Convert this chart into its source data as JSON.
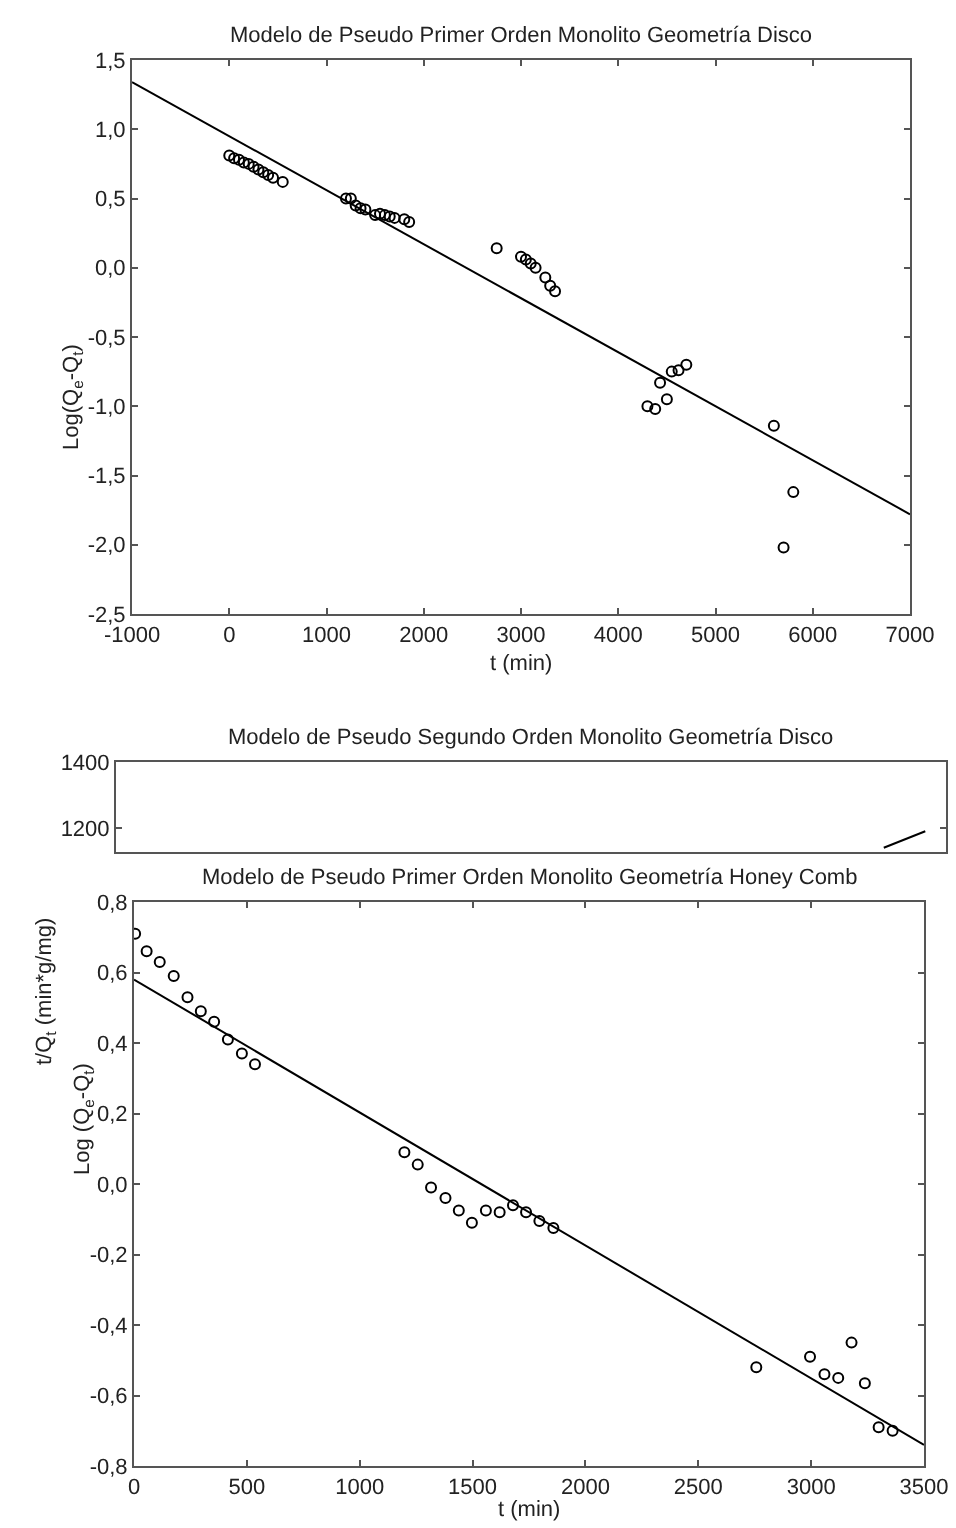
{
  "chart_data": [
    {
      "type": "scatter",
      "title": "Modelo de Pseudo Primer Orden Monolito Geometría Disco",
      "xlabel": "t (min)",
      "ylabel": "Log(Q$_{e}$-Q$_{t}$)",
      "xlim": [
        -1000,
        7000
      ],
      "ylim": [
        -2.5,
        1.5
      ],
      "xticks": [
        -1000,
        0,
        1000,
        2000,
        3000,
        4000,
        5000,
        6000,
        7000
      ],
      "yticks": [
        {
          "value": -2.5,
          "label": "-2,5"
        },
        {
          "value": -2,
          "label": "-2,0"
        },
        {
          "value": -1.5,
          "label": "-1,5"
        },
        {
          "value": -1,
          "label": "-1,0"
        },
        {
          "value": -0.5,
          "label": "-0,5"
        },
        {
          "value": 0,
          "label": "0,0"
        },
        {
          "value": 0.5,
          "label": "0,5"
        },
        {
          "value": 1,
          "label": "1,0"
        },
        {
          "value": 1.5,
          "label": "1,5"
        }
      ],
      "series": [
        {
          "marker": "circle",
          "color": "#000000",
          "x": [
            0,
            50,
            100,
            150,
            200,
            250,
            300,
            350,
            400,
            450,
            550,
            1200,
            1250,
            1300,
            1350,
            1400,
            1500,
            1550,
            1600,
            1650,
            1700,
            1800,
            1850,
            2750,
            3000,
            3050,
            3100,
            3150,
            3250,
            3300,
            3350,
            4300,
            4380,
            4430,
            4500,
            4550,
            4620,
            4700,
            5600,
            5700,
            5800
          ],
          "values": [
            0.81,
            0.79,
            0.78,
            0.76,
            0.75,
            0.73,
            0.71,
            0.69,
            0.67,
            0.65,
            0.62,
            0.5,
            0.5,
            0.45,
            0.43,
            0.42,
            0.38,
            0.39,
            0.38,
            0.37,
            0.36,
            0.35,
            0.33,
            0.14,
            0.08,
            0.06,
            0.03,
            0.0,
            -0.07,
            -0.13,
            -0.17,
            -1.0,
            -1.02,
            -0.83,
            -0.95,
            -0.75,
            -0.74,
            -0.7,
            -1.14,
            -2.02,
            -1.62
          ]
        },
        {
          "type": "line",
          "marker": "none",
          "line_style": "solid",
          "color": "#000000",
          "x": [
            -1000,
            7000
          ],
          "values": [
            1.34,
            -1.78
          ]
        }
      ]
    },
    {
      "type": "line",
      "title": "Modelo de Pseudo Segundo Orden Monolito Geometría Disco",
      "ylabel": "t/Q$_{t}$ (min*g/mg)",
      "categories": [
        null,
        null,
        null,
        null,
        null,
        null,
        null,
        null,
        null,
        null,
        null,
        null,
        null,
        null,
        null,
        null,
        null,
        null,
        null,
        null
      ],
      "ylim": [
        1127,
        1400
      ],
      "yticks": [
        1200,
        1400
      ],
      "tick_labels": "y",
      "series": [
        {
          "marker": "none",
          "line_style": "solid",
          "color": "#000000",
          "values": [
            null,
            null,
            null,
            null,
            null,
            null,
            null,
            null,
            null,
            null,
            null,
            null,
            null,
            null,
            null,
            null,
            null,
            null,
            1140,
            1190
          ]
        }
      ]
    },
    {
      "type": "scatter",
      "title": "Modelo de Pseudo Primer Orden Monolito Geometría Honey Comb",
      "xlabel": "t (min)",
      "ylabel": "Log (Q$_{e}$-Q$_{t}$)",
      "xlim": [
        0,
        3500
      ],
      "ylim": [
        -0.8,
        0.8
      ],
      "xticks": [
        0,
        500,
        1000,
        1500,
        2000,
        2500,
        3000,
        3500
      ],
      "yticks": [
        {
          "value": -0.8,
          "label": "-0,8"
        },
        {
          "value": -0.6,
          "label": "-0,6"
        },
        {
          "value": -0.4,
          "label": "-0,4"
        },
        {
          "value": -0.2,
          "label": "-0,2"
        },
        {
          "value": 0,
          "label": "0,0"
        },
        {
          "value": 0.2,
          "label": "0,2"
        },
        {
          "value": 0.4,
          "label": "0,4"
        },
        {
          "value": 0.6,
          "label": "0,6"
        },
        {
          "value": 0.8,
          "label": "0,8"
        }
      ],
      "series": [
        {
          "marker": "circle",
          "color": "#000000",
          "x": [
            5,
            56,
            114,
            176,
            237,
            296,
            355,
            416,
            478,
            536,
            1198,
            1257,
            1316,
            1380,
            1439,
            1497,
            1559,
            1620,
            1679,
            1737,
            1796,
            1858,
            2757,
            2995,
            3059,
            3120,
            3179,
            3238,
            3299,
            3361
          ],
          "values": [
            0.71,
            0.66,
            0.63,
            0.59,
            0.53,
            0.49,
            0.46,
            0.41,
            0.37,
            0.34,
            0.09,
            0.055,
            -0.01,
            -0.04,
            -0.075,
            -0.11,
            -0.075,
            -0.08,
            -0.06,
            -0.08,
            -0.105,
            -0.125,
            -0.52,
            -0.49,
            -0.54,
            -0.55,
            -0.45,
            -0.565,
            -0.69,
            -0.7
          ]
        },
        {
          "type": "line",
          "marker": "none",
          "line_style": "solid",
          "color": "#000000",
          "x": [
            0,
            3500
          ],
          "values": [
            0.58,
            -0.74
          ]
        }
      ]
    }
  ]
}
